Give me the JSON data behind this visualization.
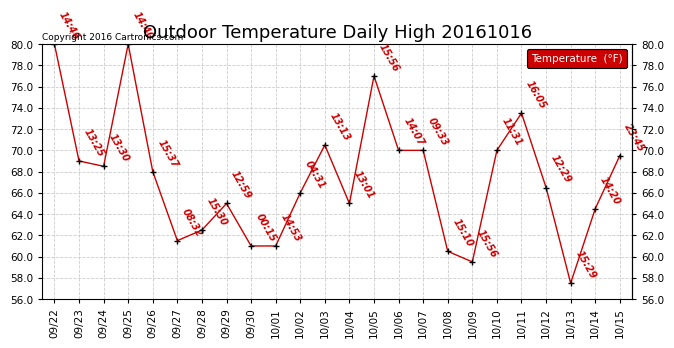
{
  "title": "Outdoor Temperature Daily High 20161016",
  "copyright": "Copyright 2016 Cartronics.com",
  "legend_label": "Temperature  (°F)",
  "dates": [
    "09/22",
    "09/23",
    "09/24",
    "09/25",
    "09/26",
    "09/27",
    "09/28",
    "09/29",
    "09/30",
    "10/01",
    "10/02",
    "10/03",
    "10/04",
    "10/05",
    "10/06",
    "10/07",
    "10/08",
    "10/09",
    "10/10",
    "10/11",
    "10/12",
    "10/13",
    "10/14",
    "10/15"
  ],
  "temps": [
    80.0,
    69.0,
    68.5,
    80.0,
    68.0,
    61.5,
    62.5,
    65.0,
    61.0,
    61.0,
    66.0,
    70.5,
    65.0,
    77.0,
    70.0,
    70.0,
    60.5,
    59.5,
    70.0,
    73.5,
    66.5,
    57.5,
    64.5,
    69.5
  ],
  "time_labels": [
    "14:46",
    "13:25",
    "13:30",
    "14:40",
    "15:37",
    "08:32",
    "15:30",
    "12:59",
    "00:15",
    "14:53",
    "04:31",
    "13:13",
    "13:01",
    "15:56",
    "14:07",
    "09:33",
    "15:10",
    "15:56",
    "11:31",
    "16:05",
    "12:29",
    "15:29",
    "14:20",
    "23:45"
  ],
  "line_color": "#cc0000",
  "marker_color": "#000000",
  "legend_bg": "#cc0000",
  "legend_text_color": "#ffffff",
  "bg_color": "#ffffff",
  "grid_color": "#cccccc",
  "ylim": [
    56.0,
    80.0
  ],
  "yticks": [
    56.0,
    58.0,
    60.0,
    62.0,
    64.0,
    66.0,
    68.0,
    70.0,
    72.0,
    74.0,
    76.0,
    78.0,
    80.0
  ],
  "title_fontsize": 13,
  "label_fontsize": 7.5,
  "annotation_fontsize": 7,
  "copyright_fontsize": 6.5
}
